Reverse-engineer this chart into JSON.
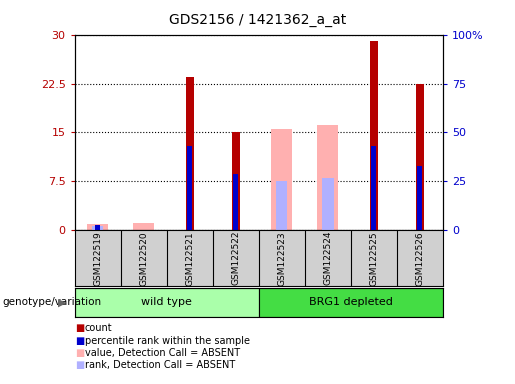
{
  "title": "GDS2156 / 1421362_a_at",
  "samples": [
    "GSM122519",
    "GSM122520",
    "GSM122521",
    "GSM122522",
    "GSM122523",
    "GSM122524",
    "GSM122525",
    "GSM122526"
  ],
  "red_count": [
    0,
    0,
    23.5,
    15,
    0,
    0,
    29,
    22.5
  ],
  "blue_rank_pct": [
    3,
    0,
    43,
    29,
    0,
    0,
    43,
    33
  ],
  "pink_value": [
    1,
    1.2,
    0,
    0,
    15.5,
    16.2,
    0,
    0
  ],
  "lightblue_rank_pct": [
    2.5,
    0,
    0,
    0,
    25,
    27,
    0,
    0
  ],
  "ylim_left": [
    0,
    30
  ],
  "ylim_right": [
    0,
    100
  ],
  "yticks_left": [
    0,
    7.5,
    15,
    22.5,
    30
  ],
  "yticks_right": [
    0,
    25,
    50,
    75,
    100
  ],
  "ytick_labels_left": [
    "0",
    "7.5",
    "15",
    "22.5",
    "30"
  ],
  "ytick_labels_right": [
    "0",
    "25",
    "50",
    "75",
    "100%"
  ],
  "color_red": "#b50000",
  "color_blue": "#0000cc",
  "color_pink": "#ffb0b0",
  "color_lightblue": "#b0b0ff",
  "color_wild": "#aaffaa",
  "color_brg1": "#44dd44",
  "bg_color": "#d0d0d0",
  "legend_items": [
    [
      "count",
      "#b50000",
      "s"
    ],
    [
      "percentile rank within the sample",
      "#0000cc",
      "s"
    ],
    [
      "value, Detection Call = ABSENT",
      "#ffb0b0",
      "s"
    ],
    [
      "rank, Detection Call = ABSENT",
      "#b0b0ff",
      "s"
    ]
  ]
}
